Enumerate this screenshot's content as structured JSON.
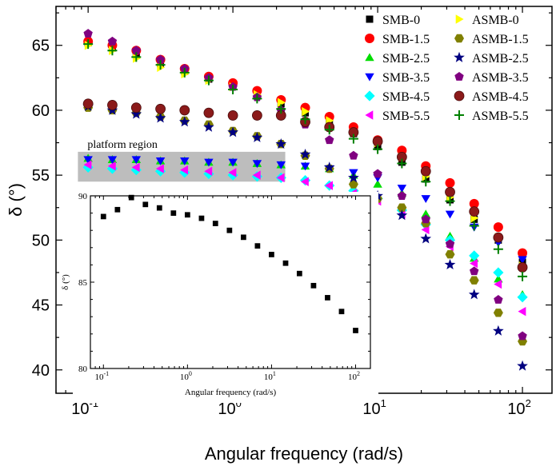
{
  "chart_data": [
    {
      "type": "scatter",
      "xscale": "log",
      "xlabel": "Angular frequency (rad/s)",
      "ylabel": "δ (°)",
      "xlim": [
        0.06,
        160
      ],
      "ylim": [
        38.2,
        68
      ],
      "x": [
        0.1,
        0.147,
        0.215,
        0.316,
        0.464,
        0.681,
        1.0,
        1.47,
        2.15,
        3.16,
        4.64,
        6.81,
        10.0,
        14.7,
        21.5,
        31.6,
        46.4,
        68.1,
        100.0
      ],
      "xticks": [
        0.1,
        1,
        10,
        100
      ],
      "xtick_labels": [
        [
          "10",
          "-1"
        ],
        [
          "10",
          "0"
        ],
        [
          "10",
          "1"
        ],
        [
          "10",
          "2"
        ]
      ],
      "yticks": [
        40,
        45,
        50,
        55,
        60,
        65
      ],
      "ytick_labels": [
        "40",
        "45",
        "50",
        "55",
        "60",
        "65"
      ],
      "annotation": "platform region",
      "band": {
        "y0": 54.5,
        "y1": 56.8,
        "x0": 0.085,
        "x1": 2.3,
        "color": "#bdbdbd"
      },
      "legend_position": "top-right",
      "series": [
        {
          "name": "SMB-0",
          "marker": "square",
          "color": "#000000",
          "values": [
            65.2,
            64.8,
            64.3,
            63.6,
            63.0,
            62.4,
            61.9,
            61.2,
            60.5,
            59.8,
            59.0,
            58.2,
            57.2,
            56.0,
            54.7,
            53.1,
            51.6,
            50.0,
            48.3
          ]
        },
        {
          "name": "SMB-1.5",
          "marker": "circle",
          "color": "#ff0000",
          "values": [
            65.3,
            65.0,
            64.6,
            63.9,
            63.2,
            62.6,
            62.1,
            61.5,
            60.8,
            60.2,
            59.5,
            58.7,
            57.7,
            56.9,
            55.7,
            54.4,
            52.8,
            51.0,
            49.0
          ]
        },
        {
          "name": "SMB-2.5",
          "marker": "triangle-up",
          "color": "#00dd00",
          "values": [
            56.3,
            56.2,
            56.2,
            56.1,
            56.1,
            56.0,
            56.0,
            55.9,
            55.8,
            55.7,
            55.5,
            55.0,
            54.3,
            53.6,
            52.0,
            50.3,
            48.6,
            47.0,
            45.8
          ]
        },
        {
          "name": "SMB-3.5",
          "marker": "triangle-down",
          "color": "#0000ff",
          "values": [
            56.2,
            56.2,
            56.2,
            56.1,
            56.1,
            56.0,
            56.0,
            55.9,
            55.8,
            55.7,
            55.5,
            55.2,
            54.8,
            54.0,
            53.2,
            52.0,
            51.0,
            49.8,
            48.5
          ]
        },
        {
          "name": "SMB-4.5",
          "marker": "diamond",
          "color": "#00ffff",
          "values": [
            55.6,
            55.5,
            55.4,
            55.3,
            55.2,
            55.1,
            55.0,
            54.9,
            54.8,
            54.6,
            54.2,
            53.8,
            53.2,
            52.3,
            51.2,
            50.0,
            48.8,
            47.5,
            45.6
          ]
        },
        {
          "name": "SMB-5.5",
          "marker": "triangle-left",
          "color": "#ff00ff",
          "values": [
            55.8,
            55.7,
            55.6,
            55.5,
            55.4,
            55.3,
            55.2,
            55.0,
            54.8,
            54.5,
            54.2,
            53.6,
            53.0,
            52.0,
            50.8,
            49.5,
            48.2,
            46.6,
            44.5
          ]
        },
        {
          "name": "ASMB-0",
          "marker": "triangle-right",
          "color": "#ffff00",
          "values": [
            65.0,
            64.6,
            64.0,
            63.3,
            62.8,
            62.3,
            61.8,
            61.2,
            60.6,
            59.9,
            59.2,
            58.3,
            57.5,
            56.4,
            54.9,
            53.3,
            51.7,
            50.2,
            48.0
          ]
        },
        {
          "name": "ASMB-1.5",
          "marker": "hexagon",
          "color": "#808000",
          "values": [
            60.2,
            60.0,
            59.8,
            59.5,
            59.2,
            58.9,
            58.4,
            58.0,
            57.4,
            56.5,
            55.5,
            54.3,
            53.2,
            52.5,
            51.3,
            48.9,
            46.9,
            44.4,
            42.2
          ]
        },
        {
          "name": "ASMB-2.5",
          "marker": "star",
          "color": "#000080",
          "values": [
            60.3,
            60.0,
            59.7,
            59.4,
            59.1,
            58.7,
            58.3,
            57.9,
            57.4,
            56.6,
            55.6,
            54.8,
            53.4,
            51.9,
            50.1,
            48.1,
            45.8,
            43.0,
            40.3
          ]
        },
        {
          "name": "ASMB-3.5",
          "marker": "pentagon",
          "color": "#800080",
          "values": [
            65.9,
            65.3,
            64.6,
            63.9,
            63.2,
            62.5,
            61.8,
            61.0,
            60.0,
            58.9,
            57.7,
            56.5,
            55.1,
            53.4,
            51.6,
            49.7,
            47.6,
            45.4,
            42.6
          ]
        },
        {
          "name": "ASMB-4.5",
          "marker": "circle-shaded",
          "color": "#8b1a1a",
          "values": [
            60.5,
            60.4,
            60.2,
            60.1,
            60.0,
            59.8,
            59.6,
            59.6,
            59.6,
            59.1,
            58.7,
            58.3,
            57.6,
            56.4,
            55.3,
            53.7,
            52.2,
            50.2,
            47.9
          ]
        },
        {
          "name": "ASMB-5.5",
          "marker": "plus",
          "color": "#008000",
          "values": [
            65.1,
            64.6,
            64.1,
            63.5,
            62.9,
            62.3,
            61.6,
            60.9,
            60.1,
            59.3,
            58.5,
            57.8,
            57.0,
            55.9,
            54.5,
            53.0,
            51.1,
            49.3,
            47.2
          ]
        }
      ]
    },
    {
      "type": "scatter",
      "xscale": "log",
      "xlabel": "Angular frequency (rad/s)",
      "ylabel": "δ (°)",
      "xlim": [
        0.07,
        150
      ],
      "ylim": [
        80,
        90
      ],
      "xticks": [
        0.1,
        1,
        10,
        100
      ],
      "xtick_labels": [
        [
          "10",
          "-1"
        ],
        [
          "10",
          "0"
        ],
        [
          "10",
          "1"
        ],
        [
          "10",
          "2"
        ]
      ],
      "yticks": [
        80,
        85,
        90
      ],
      "ytick_labels": [
        "80",
        "85",
        "90"
      ],
      "series": [
        {
          "marker": "square",
          "color": "#000000",
          "x": [
            0.1,
            0.147,
            0.215,
            0.316,
            0.464,
            0.681,
            1.0,
            1.47,
            2.15,
            3.16,
            4.64,
            6.81,
            10.0,
            14.7,
            21.5,
            31.6,
            46.4,
            68.1,
            100.0
          ],
          "values": [
            88.8,
            89.2,
            89.9,
            89.5,
            89.3,
            89.0,
            88.9,
            88.7,
            88.4,
            88.0,
            87.6,
            87.1,
            86.6,
            86.1,
            85.5,
            84.8,
            84.1,
            83.3,
            82.2
          ]
        }
      ]
    }
  ]
}
